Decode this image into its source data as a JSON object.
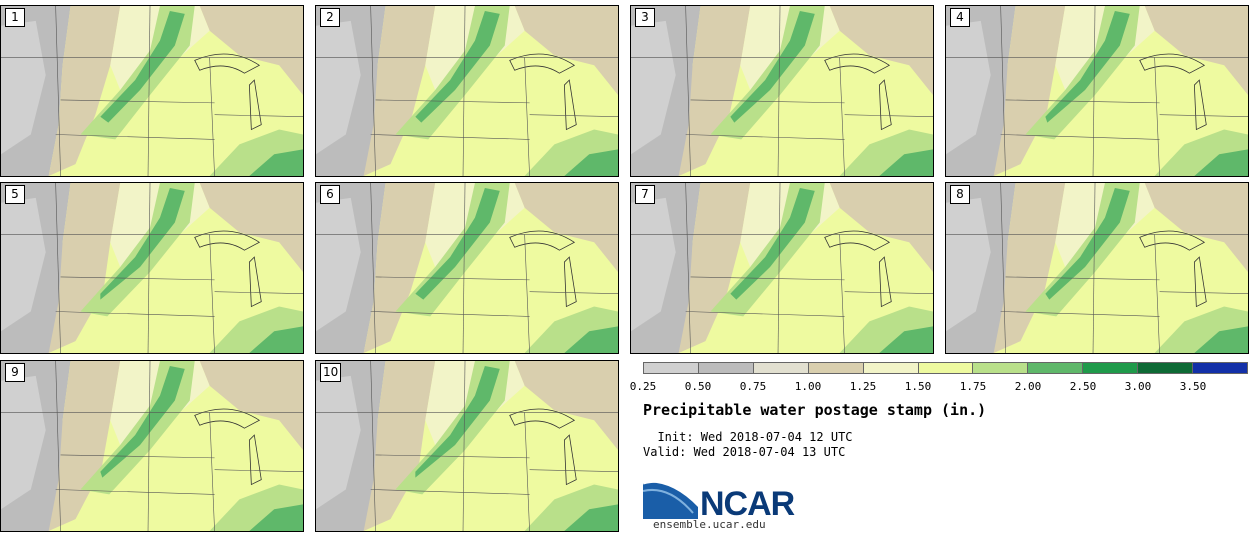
{
  "panels": [
    {
      "label": "1"
    },
    {
      "label": "2"
    },
    {
      "label": "3"
    },
    {
      "label": "4"
    },
    {
      "label": "5"
    },
    {
      "label": "6"
    },
    {
      "label": "7"
    },
    {
      "label": "8"
    },
    {
      "label": "9"
    },
    {
      "label": "10"
    }
  ],
  "legend": {
    "ticks": [
      "0.25",
      "0.50",
      "0.75",
      "1.00",
      "1.25",
      "1.50",
      "1.75",
      "2.00",
      "2.50",
      "3.00",
      "3.50"
    ],
    "colors": [
      "#d0d0d0",
      "#bcbcbc",
      "#e2e0d0",
      "#d9cfae",
      "#f2f4c8",
      "#eefaa0",
      "#b9e08a",
      "#5fb86a",
      "#1f9a4a",
      "#0e6a35",
      "#1330a8"
    ]
  },
  "title": "Precipitable water postage stamp (in.)",
  "init": "  Init: Wed 2018-07-04 12 UTC",
  "valid": "Valid: Wed 2018-07-04 13 UTC",
  "logo": {
    "text": "NCAR",
    "url": "ensemble.ucar.edu"
  }
}
